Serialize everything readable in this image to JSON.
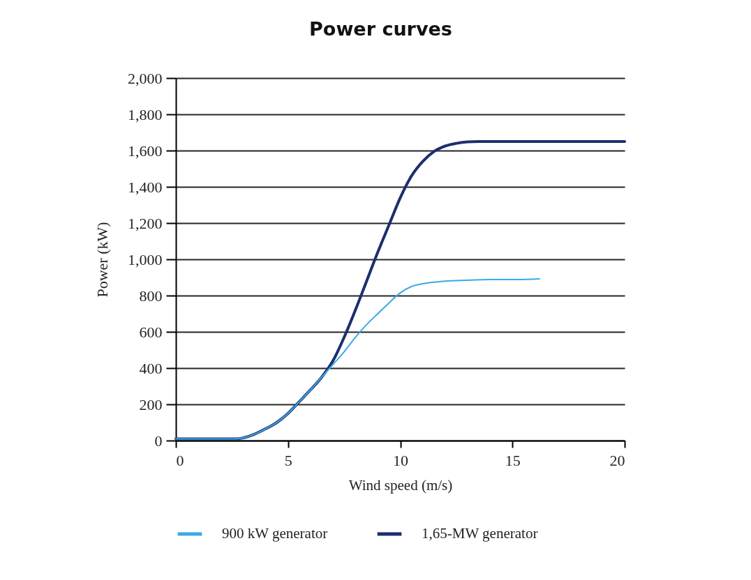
{
  "chart_data": {
    "type": "line",
    "title": "Power curves",
    "xlabel": "Wind speed (m/s)",
    "ylabel": "Power (kW)",
    "xlim": [
      0,
      20
    ],
    "xticks": [
      0,
      5,
      10,
      15,
      20
    ],
    "ylim": [
      0,
      2000
    ],
    "yticks": [
      0,
      {
        "value": 200,
        "label": "200"
      },
      {
        "value": 400,
        "label": "400"
      },
      {
        "value": 600,
        "label": "600"
      },
      {
        "value": 800,
        "label": "800"
      },
      {
        "value": 1000,
        "label": "1,000"
      },
      {
        "value": 1200,
        "label": "1,200"
      },
      {
        "value": 1400,
        "label": "1,400"
      },
      {
        "value": 1600,
        "label": "1,600"
      },
      {
        "value": 1800,
        "label": "1,800"
      },
      {
        "value": 2000,
        "label": "2,000"
      }
    ],
    "grid": "y",
    "legend": "bottom",
    "line_style": "solid",
    "series": [
      {
        "name": "900 kW generator",
        "color": "#3aa9e6",
        "x": [
          0,
          1,
          2,
          2.7,
          3,
          3.5,
          4,
          4.5,
          5,
          5.5,
          6,
          6.5,
          7,
          7.5,
          8,
          8.5,
          9,
          9.5,
          10,
          10.5,
          11,
          12,
          13,
          14,
          15,
          16.2
        ],
        "values": [
          10,
          10,
          10,
          10,
          15,
          35,
          65,
          100,
          150,
          215,
          280,
          350,
          420,
          490,
          570,
          640,
          700,
          760,
          815,
          850,
          865,
          880,
          885,
          888,
          888,
          892
        ]
      },
      {
        "name": "1,65-MW generator",
        "color": "#1c2e6e",
        "x": [
          0,
          1,
          2,
          2.7,
          3,
          3.5,
          4,
          4.5,
          5,
          5.5,
          6,
          6.5,
          7,
          7.5,
          8,
          8.5,
          9,
          9.5,
          10,
          10.5,
          11,
          11.5,
          12,
          12.5,
          13,
          13.5,
          15,
          17,
          20
        ],
        "values": [
          10,
          10,
          10,
          10,
          15,
          35,
          65,
          100,
          150,
          215,
          280,
          350,
          440,
          570,
          720,
          880,
          1040,
          1190,
          1340,
          1460,
          1540,
          1595,
          1625,
          1640,
          1648,
          1650,
          1650,
          1650,
          1650
        ]
      }
    ]
  }
}
